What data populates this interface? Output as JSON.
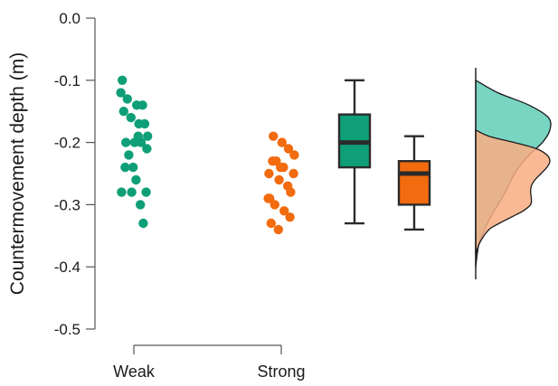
{
  "chart_data": {
    "type": "raincloud",
    "ylabel": "Countermovement depth (m)",
    "xlabel": "",
    "ylim": [
      -0.5,
      0.0
    ],
    "yticks": [
      0.0,
      -0.1,
      -0.2,
      -0.3,
      -0.4,
      -0.5
    ],
    "ytick_labels": [
      "0.0",
      "-0.1",
      "-0.2",
      "-0.3",
      "-0.4",
      "-0.5"
    ],
    "categories": [
      "Weak",
      "Strong"
    ],
    "grid": false,
    "legend": "none",
    "series": [
      {
        "category": "Weak",
        "color": "#0f9f78",
        "density_color": "#62cdb7",
        "points": [
          -0.1,
          -0.12,
          -0.13,
          -0.14,
          -0.14,
          -0.15,
          -0.16,
          -0.17,
          -0.17,
          -0.19,
          -0.19,
          -0.2,
          -0.2,
          -0.2,
          -0.21,
          -0.22,
          -0.24,
          -0.24,
          -0.26,
          -0.28,
          -0.28,
          -0.28,
          -0.3,
          -0.33
        ],
        "box": {
          "min": -0.33,
          "q1": -0.24,
          "median": -0.2,
          "q3": -0.155,
          "max": -0.1
        },
        "density": [
          [
            -0.1,
            0.0
          ],
          [
            -0.12,
            0.3
          ],
          [
            -0.14,
            0.72
          ],
          [
            -0.16,
            0.98
          ],
          [
            -0.18,
            1.0
          ],
          [
            -0.2,
            0.9
          ],
          [
            -0.22,
            0.72
          ],
          [
            -0.24,
            0.58
          ],
          [
            -0.26,
            0.48
          ],
          [
            -0.28,
            0.4
          ],
          [
            -0.3,
            0.3
          ],
          [
            -0.32,
            0.2
          ],
          [
            -0.34,
            0.12
          ],
          [
            -0.36,
            0.05
          ],
          [
            -0.38,
            0.02
          ],
          [
            -0.4,
            0.0
          ]
        ]
      },
      {
        "category": "Strong",
        "color": "#f26b0f",
        "density_color": "#f9ad83",
        "points": [
          -0.19,
          -0.2,
          -0.21,
          -0.22,
          -0.23,
          -0.23,
          -0.24,
          -0.24,
          -0.25,
          -0.25,
          -0.26,
          -0.27,
          -0.28,
          -0.29,
          -0.29,
          -0.3,
          -0.31,
          -0.32,
          -0.33,
          -0.34
        ],
        "box": {
          "min": -0.34,
          "q1": -0.3,
          "median": -0.25,
          "q3": -0.23,
          "max": -0.19
        },
        "density": [
          [
            -0.18,
            0.0
          ],
          [
            -0.19,
            0.18
          ],
          [
            -0.2,
            0.52
          ],
          [
            -0.21,
            0.82
          ],
          [
            -0.22,
            0.96
          ],
          [
            -0.23,
            1.0
          ],
          [
            -0.24,
            0.96
          ],
          [
            -0.25,
            0.88
          ],
          [
            -0.26,
            0.8
          ],
          [
            -0.27,
            0.75
          ],
          [
            -0.28,
            0.74
          ],
          [
            -0.29,
            0.75
          ],
          [
            -0.3,
            0.74
          ],
          [
            -0.31,
            0.64
          ],
          [
            -0.32,
            0.48
          ],
          [
            -0.33,
            0.32
          ],
          [
            -0.34,
            0.18
          ],
          [
            -0.36,
            0.06
          ],
          [
            -0.38,
            0.0
          ]
        ]
      }
    ]
  }
}
